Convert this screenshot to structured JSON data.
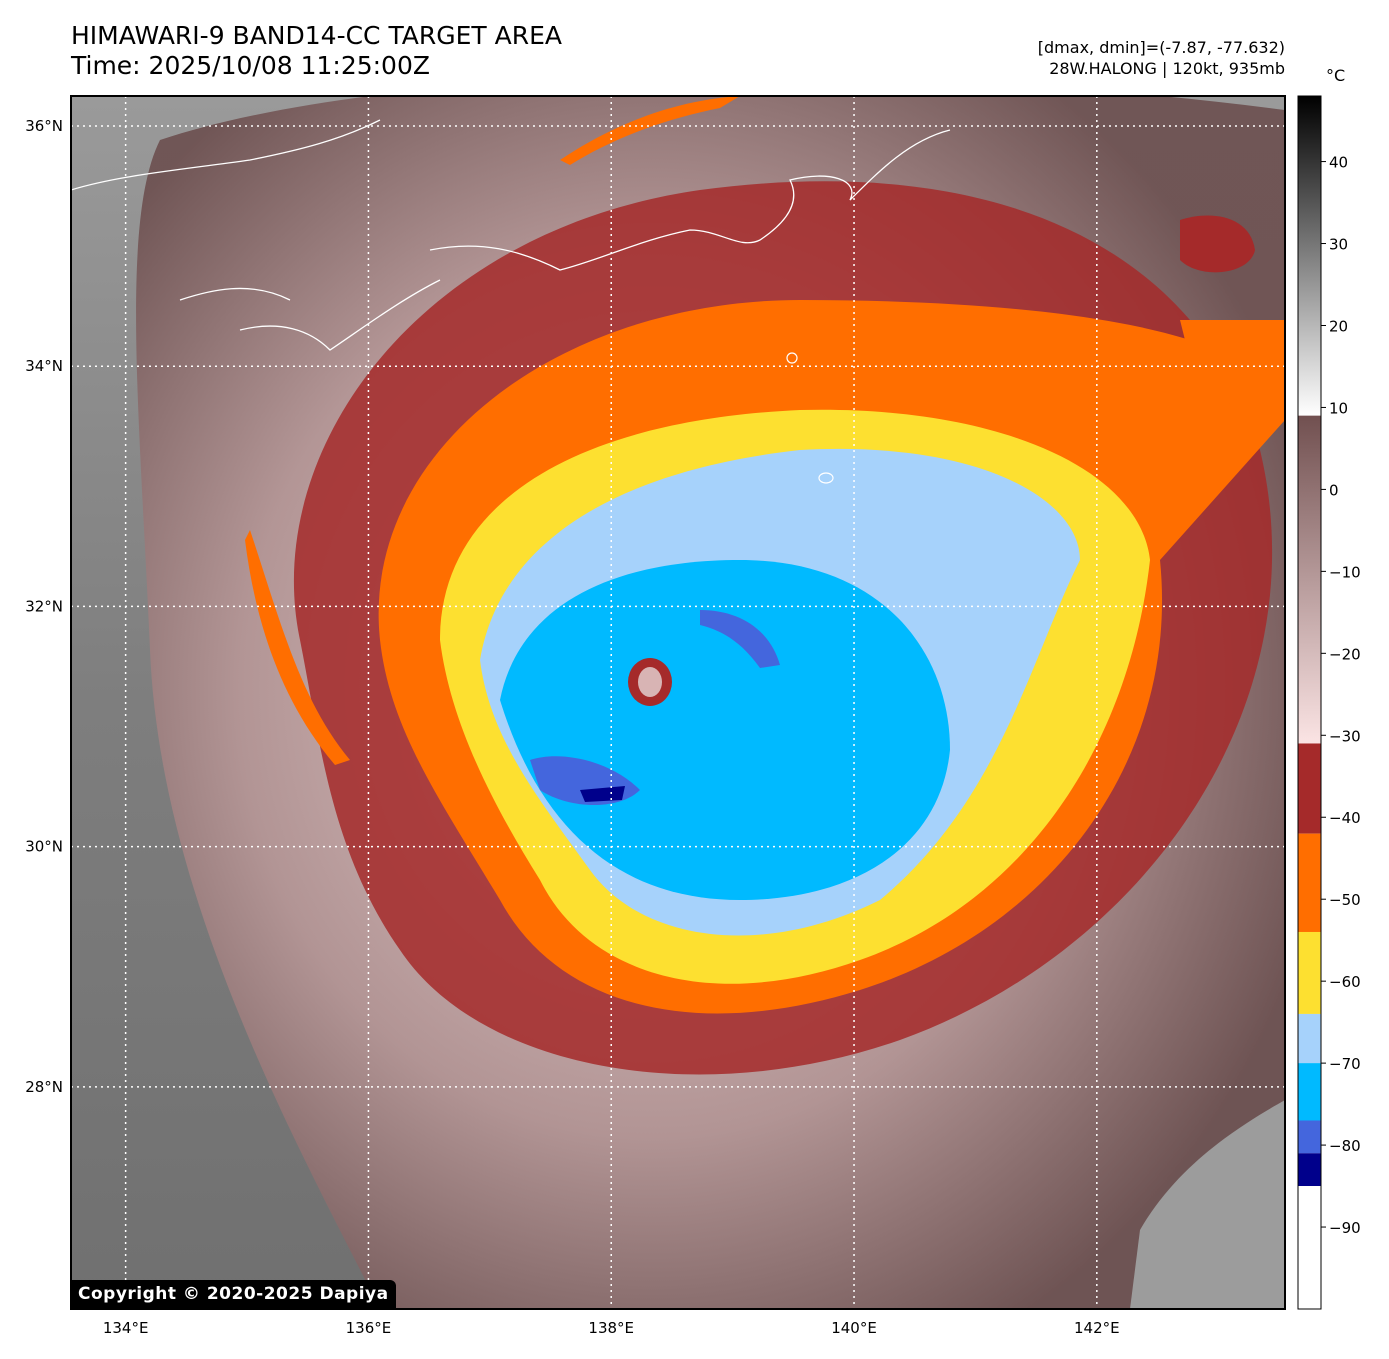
{
  "header": {
    "title_line1": "HIMAWARI-9 BAND14-CC TARGET AREA",
    "title_line2": "Time: 2025/10/08 11:25:00Z",
    "dvalues": "[dmax, dmin]=(-7.87, -77.632)",
    "storm": "28W.HALONG | 120kt, 935mb"
  },
  "colorbar": {
    "unit": "°C",
    "tick_labels": [
      "40",
      "30",
      "20",
      "10",
      "0",
      "−10",
      "−20",
      "−30",
      "−40",
      "−50",
      "−60",
      "−70",
      "−80",
      "−90"
    ],
    "tick_values": [
      40,
      30,
      20,
      10,
      0,
      -10,
      -20,
      -30,
      -40,
      -50,
      -60,
      -70,
      -80,
      -90
    ],
    "range": [
      -100,
      48
    ],
    "bands": [
      {
        "from": 48,
        "to": 9,
        "style": "grayscale"
      },
      {
        "from": 9,
        "to": -31,
        "style": "brown-to-pink"
      },
      {
        "from": -31,
        "to": -42,
        "color": "#a52a2a"
      },
      {
        "from": -42,
        "to": -54,
        "color": "#ff6e00"
      },
      {
        "from": -54,
        "to": -64,
        "color": "#fde030"
      },
      {
        "from": -64,
        "to": -70,
        "color": "#a6d2fb"
      },
      {
        "from": -70,
        "to": -77,
        "color": "#00baff"
      },
      {
        "from": -77,
        "to": -81,
        "color": "#4466dd"
      },
      {
        "from": -81,
        "to": -85,
        "color": "#00008b"
      },
      {
        "from": -85,
        "to": -100,
        "color": "#ffffff"
      }
    ]
  },
  "axes": {
    "lon_range": [
      133.55,
      143.55
    ],
    "lat_range": [
      26.15,
      36.25
    ],
    "lon_ticks": [
      134,
      136,
      138,
      140,
      142
    ],
    "lat_ticks": [
      28,
      30,
      32,
      34,
      36
    ],
    "lon_labels": [
      "134°E",
      "136°E",
      "138°E",
      "140°E",
      "142°E"
    ],
    "lat_labels": [
      "28°N",
      "30°N",
      "32°N",
      "34°N",
      "36°N"
    ],
    "grid": "dotted white"
  },
  "storm_center": {
    "lon": 138.3,
    "lat": 31.45
  },
  "copyright": "Copyright © 2020-2025 Dapiya"
}
